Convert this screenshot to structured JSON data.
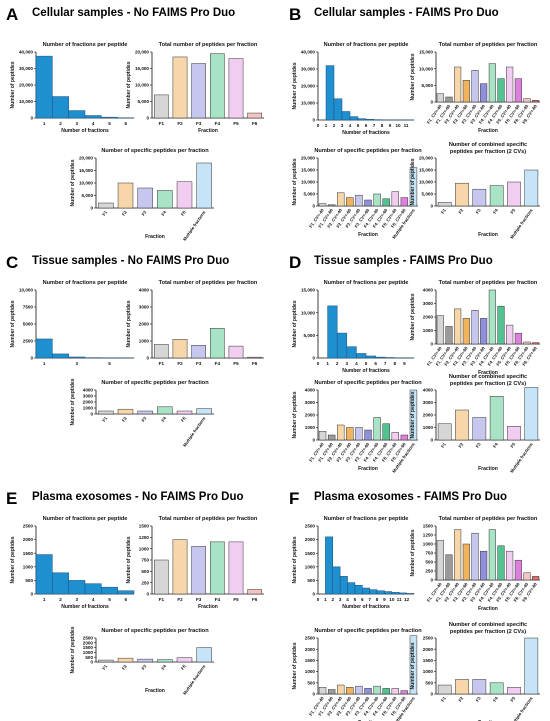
{
  "colors": {
    "blue": "#1e8fcf",
    "blue_edge": "#1f4e79",
    "axis": "#111111"
  },
  "palette": [
    "#d6d6d6",
    "#f7d7aa",
    "#c6c6ee",
    "#a8e3c6",
    "#f1cdf1",
    "#f6c2c2",
    "#c5e4f7"
  ],
  "dark_palette": [
    "#9a9a9a",
    "#f0b45f",
    "#8f8fdc",
    "#52c290",
    "#dd7fdd",
    "#e26a6a",
    "#88c9ef"
  ],
  "panels": [
    {
      "letter": "A",
      "title": "Cellular samples - No FAIMS Pro Duo"
    },
    {
      "letter": "B",
      "title": "Cellular samples - FAIMS Pro Duo"
    },
    {
      "letter": "C",
      "title": "Tissue samples - No FAIMS Pro Duo"
    },
    {
      "letter": "D",
      "title": "Tissue samples - FAIMS Pro Duo"
    },
    {
      "letter": "E",
      "title": "Plasma exosomes - No FAIMS Pro Duo"
    },
    {
      "letter": "F",
      "title": "Plasma exosomes - FAIMS Pro Duo"
    }
  ],
  "chart_data": [
    {
      "id": "A1",
      "type": "bar",
      "title": "Number of fractions per peptide",
      "xlabel": "Number of fractions",
      "ylabel": "Number of peptides",
      "categories": [
        "1",
        "2",
        "3",
        "4",
        "5",
        "6"
      ],
      "values": [
        37500,
        13000,
        4500,
        1500,
        500,
        150
      ],
      "ylim": [
        0,
        40000
      ],
      "yticks": [
        "0",
        "10,000",
        "20,000",
        "30,000",
        "40,000"
      ],
      "style": "hist",
      "xtick_show": [
        "1",
        "2",
        "3",
        "4",
        "5",
        "6"
      ]
    },
    {
      "id": "A2",
      "type": "bar",
      "title": "Total number of peptides per fraction",
      "xlabel": "Fraction",
      "ylabel": "Number of peptides",
      "categories": [
        "F1",
        "F2",
        "F3",
        "F4",
        "F5",
        "F6"
      ],
      "values": [
        7000,
        18500,
        16500,
        19500,
        18000,
        1500
      ],
      "ylim": [
        0,
        20000
      ],
      "yticks": [
        "0",
        "5,000",
        "10,000",
        "15,000",
        "20,000"
      ],
      "style": "color"
    },
    {
      "id": "A3",
      "type": "bar",
      "title": "Number of specific peptides per fraction",
      "xlabel": "Fraction",
      "ylabel": "Number of peptides",
      "categories": [
        "F1",
        "F2",
        "F3",
        "F4",
        "F5",
        "Multiple fractions"
      ],
      "values": [
        2000,
        10000,
        8000,
        7000,
        10500,
        18000
      ],
      "ylim": [
        0,
        20000
      ],
      "yticks": [
        "0",
        "5,000",
        "10,000",
        "15,000",
        "20,000"
      ],
      "style": "color6"
    },
    {
      "id": "B1",
      "type": "bar",
      "title": "Number of fractions per peptide",
      "xlabel": "Number of fractions",
      "ylabel": "Number of peptides",
      "categories": [
        "1",
        "2",
        "3",
        "4",
        "5",
        "6",
        "7",
        "8",
        "9",
        "10",
        "11"
      ],
      "values": [
        32000,
        12500,
        5000,
        2000,
        800,
        400,
        200,
        100,
        50,
        20,
        10
      ],
      "ylim": [
        0,
        40000
      ],
      "yticks": [
        "0",
        "10,000",
        "20,000",
        "30,000",
        "40,000"
      ],
      "style": "hist",
      "xtick_show": [
        "0",
        "1",
        "2",
        "3",
        "4",
        "5",
        "6",
        "7",
        "8",
        "9",
        "10",
        "11"
      ]
    },
    {
      "id": "B2",
      "type": "bar",
      "title": "Total number of peptides per fraction",
      "xlabel": "Fraction",
      "ylabel": "Number of peptides",
      "categories": [
        "F1_CV=-40",
        "F1_CV=-60",
        "F2_CV=-40",
        "F2_CV=-60",
        "F3_CV=-40",
        "F3_CV=-60",
        "F4_CV=-40",
        "F4_CV=-60",
        "F5_CV=-40",
        "F5_CV=-60",
        "F6_CV=-40",
        "F6_CV=-60"
      ],
      "values": [
        2500,
        1500,
        10500,
        6500,
        9500,
        5500,
        11500,
        7000,
        10500,
        7000,
        1000,
        500
      ],
      "ylim": [
        0,
        15000
      ],
      "yticks": [
        "0",
        "5,000",
        "10,000",
        "15,000"
      ],
      "style": "pair"
    },
    {
      "id": "B3",
      "type": "bar",
      "title": "Number of specific peptides per fraction",
      "xlabel": "Fraction",
      "ylabel": "Number of peptides",
      "categories": [
        "F1_CV=-40",
        "F1_CV=-60",
        "F2_CV=-40",
        "F2_CV=-60",
        "F3_CV=-40",
        "F3_CV=-60",
        "F4_CV=-40",
        "F4_CV=-60",
        "F5_CV=-40",
        "F5_CV=-60",
        "Multiple fractions"
      ],
      "values": [
        1000,
        500,
        5500,
        3500,
        4500,
        2500,
        5000,
        3000,
        6000,
        3500,
        16000
      ],
      "ylim": [
        0,
        20000
      ],
      "yticks": [
        "0",
        "5,000",
        "10,000",
        "15,000",
        "20,000"
      ],
      "style": "pair_multi"
    },
    {
      "id": "B4",
      "type": "bar",
      "title": "Number of combined specific peptides per fraction (2 CVs)",
      "xlabel": "Fraction",
      "ylabel": "Number of peptides",
      "categories": [
        "F1",
        "F2",
        "F3",
        "F4",
        "F5",
        "Multiple fractions"
      ],
      "values": [
        1500,
        9500,
        7000,
        8500,
        10000,
        15000
      ],
      "ylim": [
        0,
        20000
      ],
      "yticks": [
        "0",
        "5,000",
        "10,000",
        "15,000",
        "20,000"
      ],
      "style": "color6"
    },
    {
      "id": "C1",
      "type": "bar",
      "title": "Number of fractions per peptide",
      "xlabel": "",
      "ylabel": "Number of peptides",
      "categories": [
        "1",
        "2",
        "3",
        "4",
        "5",
        "6"
      ],
      "values": [
        2800,
        600,
        150,
        50,
        20,
        10
      ],
      "ylim": [
        0,
        10000
      ],
      "yticks": [
        "0",
        "2500",
        "5000",
        "7500",
        "10,000"
      ],
      "style": "hist",
      "xtick_show": [
        "1",
        "",
        "3",
        "",
        "5",
        ""
      ]
    },
    {
      "id": "C2",
      "type": "bar",
      "title": "Total number of peptides per fraction",
      "xlabel": "",
      "ylabel": "Number of peptides",
      "categories": [
        "F1",
        "F2",
        "F3",
        "F4",
        "F5",
        "F6"
      ],
      "values": [
        800,
        1100,
        750,
        1750,
        700,
        50
      ],
      "ylim": [
        0,
        4000
      ],
      "yticks": [
        "0",
        "1000",
        "2000",
        "3000",
        "4000"
      ],
      "style": "color"
    },
    {
      "id": "C3",
      "type": "bar",
      "title": "Number of specific peptides per fraction",
      "xlabel": "",
      "ylabel": "Number of peptides",
      "categories": [
        "F1",
        "F2",
        "F3",
        "F4",
        "F5",
        "Multiple fractions"
      ],
      "values": [
        500,
        800,
        500,
        1200,
        500,
        900
      ],
      "ylim": [
        0,
        4000
      ],
      "yticks": [
        "0",
        "1000",
        "2000",
        "3000",
        "4000"
      ],
      "style": "color6"
    },
    {
      "id": "D1",
      "type": "bar",
      "title": "Number of fractions per peptide",
      "xlabel": "Number of fractions",
      "ylabel": "Number of peptides",
      "categories": [
        "1",
        "2",
        "3",
        "4",
        "5",
        "6",
        "7",
        "8",
        "9"
      ],
      "values": [
        11500,
        5500,
        2500,
        1000,
        450,
        200,
        100,
        50,
        20
      ],
      "ylim": [
        0,
        15000
      ],
      "yticks": [
        "0",
        "5,000",
        "10,000",
        "15,000"
      ],
      "style": "hist",
      "xtick_show": [
        "0",
        "1",
        "2",
        "3",
        "4",
        "5",
        "6",
        "7",
        "8",
        "9"
      ]
    },
    {
      "id": "D2",
      "type": "bar",
      "title": "Total number of peptides per fraction",
      "xlabel": "Fraction",
      "ylabel": "Number of peptides",
      "categories": [
        "F1_CV=-40",
        "F1_CV=-60",
        "F2_CV=-40",
        "F2_CV=-60",
        "F3_CV=-40",
        "F3_CV=-60",
        "F4_CV=-40",
        "F4_CV=-60",
        "F5_CV=-40",
        "F5_CV=-60",
        "F6_CV=-40",
        "F6_CV=-60"
      ],
      "values": [
        2100,
        1300,
        2600,
        1900,
        2500,
        1900,
        4000,
        2800,
        1400,
        800,
        150,
        100
      ],
      "ylim": [
        0,
        4000
      ],
      "yticks": [
        "0",
        "1000",
        "2000",
        "3000",
        "4000"
      ],
      "style": "pair"
    },
    {
      "id": "D3",
      "type": "bar",
      "title": "Number of specific peptides per fraction",
      "xlabel": "Fraction",
      "ylabel": "Number of peptides",
      "categories": [
        "F1_CV=-40",
        "F1_CV=-60",
        "F2_CV=-40",
        "F2_CV=-60",
        "F3_CV=-40",
        "F3_CV=-60",
        "F4_CV=-40",
        "F4_CV=-60",
        "F5_CV=-40",
        "F5_CV=-60",
        "Multiple fractions"
      ],
      "values": [
        700,
        400,
        1200,
        1000,
        1000,
        800,
        1800,
        1300,
        600,
        400,
        4000
      ],
      "ylim": [
        0,
        4000
      ],
      "yticks": [
        "0",
        "1000",
        "2000",
        "3000",
        "4000"
      ],
      "style": "pair_multi"
    },
    {
      "id": "D4",
      "type": "bar",
      "title": "Number of combined specific peptides per fraction (2 CVs)",
      "xlabel": "Fraction",
      "ylabel": "Number of peptides",
      "categories": [
        "F1",
        "F2",
        "F3",
        "F4",
        "F5",
        "Multiple fractions"
      ],
      "values": [
        1300,
        2400,
        1800,
        3500,
        1100,
        4200
      ],
      "ylim": [
        0,
        4000
      ],
      "yticks": [
        "0",
        "1000",
        "2000",
        "3000",
        "4000"
      ],
      "style": "color6"
    },
    {
      "id": "E1",
      "type": "bar",
      "title": "Number of fractions per peptide",
      "xlabel": "Number of fractions",
      "ylabel": "Number of peptides",
      "categories": [
        "1",
        "2",
        "3",
        "4",
        "5",
        "6"
      ],
      "values": [
        1450,
        780,
        500,
        380,
        250,
        120
      ],
      "ylim": [
        0,
        2500
      ],
      "yticks": [
        "0",
        "500",
        "1000",
        "1500",
        "2000",
        "2500"
      ],
      "style": "hist",
      "xtick_show": [
        "1",
        "2",
        "3",
        "4",
        "5",
        "6"
      ]
    },
    {
      "id": "E2",
      "type": "bar",
      "title": "Total number of peptides per fraction",
      "xlabel": "Fraction",
      "ylabel": "Number of peptides",
      "categories": [
        "F1",
        "F2",
        "F3",
        "F4",
        "F5",
        "F6"
      ],
      "values": [
        750,
        1200,
        1050,
        1150,
        1150,
        100
      ],
      "ylim": [
        0,
        1500
      ],
      "yticks": [
        "0",
        "250",
        "500",
        "750",
        "1000",
        "1250",
        "1500"
      ],
      "style": "color"
    },
    {
      "id": "E3",
      "type": "bar",
      "title": "Number of specific peptides per fraction",
      "xlabel": "Fraction",
      "ylabel": "Number of peptides",
      "categories": [
        "F1",
        "F2",
        "F3",
        "F4",
        "F5",
        "Multiple fractions"
      ],
      "values": [
        200,
        400,
        300,
        250,
        450,
        1500
      ],
      "ylim": [
        0,
        2500
      ],
      "yticks": [
        "0",
        "500",
        "1000",
        "1500",
        "2000",
        "2500"
      ],
      "style": "color6"
    },
    {
      "id": "F1",
      "type": "bar",
      "title": "Number of fractions per peptide",
      "xlabel": "Number of fractions",
      "ylabel": "Number of peptides",
      "categories": [
        "1",
        "2",
        "3",
        "4",
        "5",
        "6",
        "7",
        "8",
        "9",
        "10",
        "11",
        "12"
      ],
      "values": [
        2100,
        1000,
        650,
        420,
        320,
        220,
        160,
        120,
        90,
        60,
        40,
        20
      ],
      "ylim": [
        0,
        2500
      ],
      "yticks": [
        "0",
        "500",
        "1000",
        "1500",
        "2000",
        "2500"
      ],
      "style": "hist",
      "xtick_show": [
        "0",
        "1",
        "2",
        "3",
        "4",
        "5",
        "6",
        "7",
        "8",
        "9",
        "10",
        "11",
        "12"
      ]
    },
    {
      "id": "F2",
      "type": "bar",
      "title": "Total number of peptides per fraction",
      "xlabel": "Fraction",
      "ylabel": "Number of peptides",
      "categories": [
        "F1_CV=-40",
        "F1_CV=-60",
        "F2_CV=-40",
        "F2_CV=-60",
        "F3_CV=-40",
        "F3_CV=-60",
        "F4_CV=-40",
        "F4_CV=-60",
        "F5_CV=-40",
        "F5_CV=-60",
        "F6_CV=-40",
        "F6_CV=-60"
      ],
      "values": [
        1100,
        700,
        1400,
        1000,
        1300,
        800,
        1400,
        950,
        800,
        550,
        200,
        100
      ],
      "ylim": [
        0,
        1500
      ],
      "yticks": [
        "0",
        "250",
        "500",
        "750",
        "1000",
        "1250",
        "1500"
      ],
      "style": "pair"
    },
    {
      "id": "F3",
      "type": "bar",
      "title": "Number of specific peptides per fraction",
      "xlabel": "Fraction",
      "ylabel": "Number of peptides",
      "categories": [
        "F1_CV=-40",
        "F1_CV=-60",
        "F2_CV=-40",
        "F2_CV=-60",
        "F3_CV=-40",
        "F3_CV=-60",
        "F4_CV=-40",
        "F4_CV=-60",
        "F5_CV=-40",
        "F5_CV=-60",
        "Multiple fractions"
      ],
      "values": [
        300,
        200,
        400,
        300,
        350,
        250,
        350,
        250,
        250,
        150,
        2600
      ],
      "ylim": [
        0,
        2500
      ],
      "yticks": [
        "0",
        "500",
        "1000",
        "1500",
        "2000",
        "2500"
      ],
      "style": "pair_multi"
    },
    {
      "id": "F4",
      "type": "bar",
      "title": "Number of combined specific peptides per fraction (2 CVs)",
      "xlabel": "Fraction",
      "ylabel": "Number of peptides",
      "categories": [
        "F1",
        "F2",
        "F3",
        "F4",
        "F5",
        "Multiple fractions"
      ],
      "values": [
        400,
        650,
        650,
        500,
        300,
        2500
      ],
      "ylim": [
        0,
        2500
      ],
      "yticks": [
        "0",
        "500",
        "1000",
        "1500",
        "2000",
        "2500"
      ],
      "style": "color6"
    }
  ]
}
